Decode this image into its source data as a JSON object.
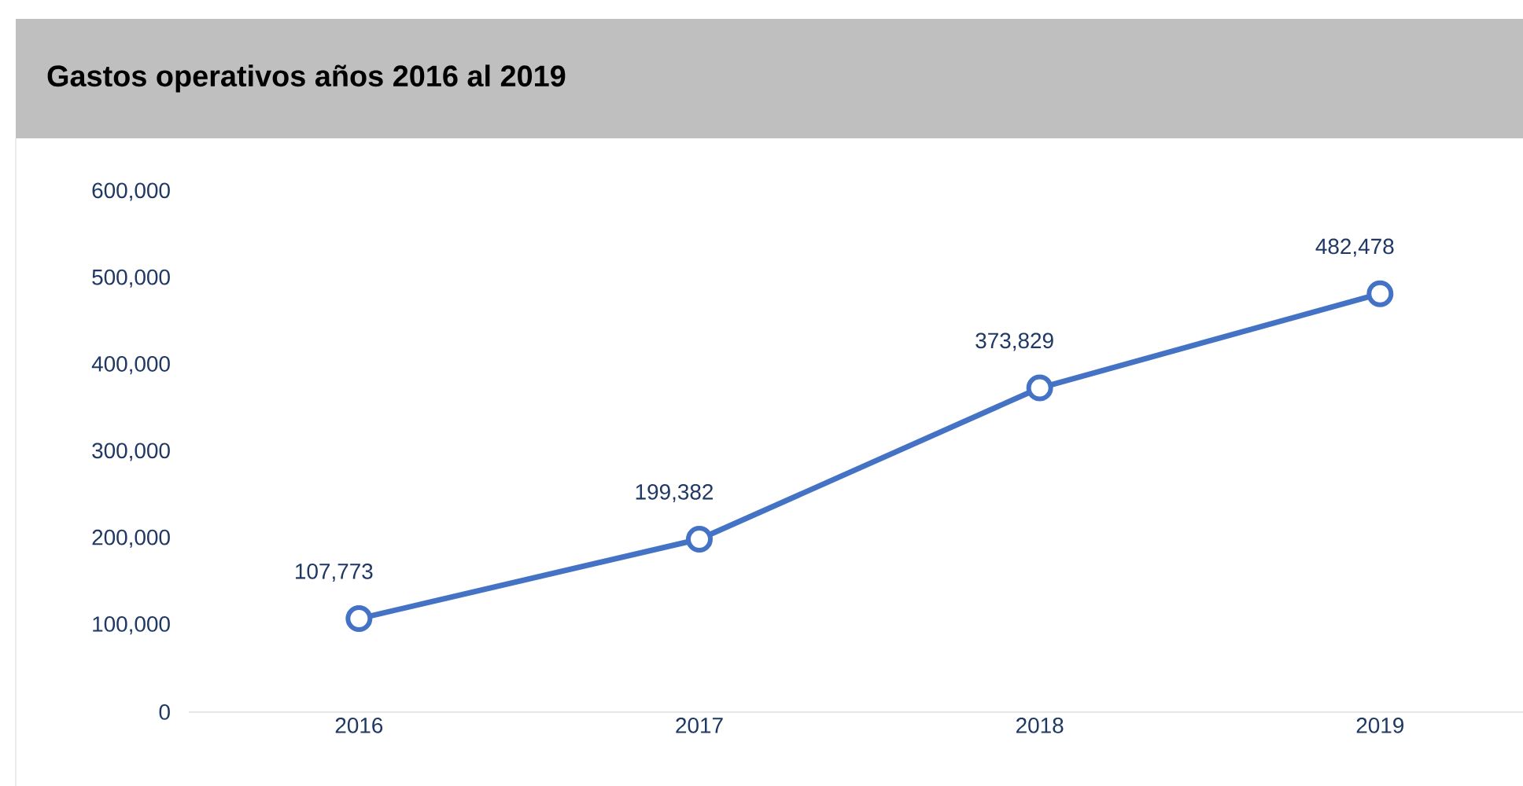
{
  "chart_data": {
    "type": "line",
    "title": "Gastos operativos años 2016 al 2019",
    "categories": [
      "2016",
      "2017",
      "2018",
      "2019"
    ],
    "values": [
      107773,
      199382,
      373829,
      482478
    ],
    "value_labels": [
      "107,773",
      "199,382",
      "373,829",
      "482,478"
    ],
    "color": "#4472c4",
    "marker": "circle",
    "ylim": [
      0,
      600000
    ],
    "yticks": [
      {
        "value": 0,
        "label": "0"
      },
      {
        "value": 100000,
        "label": "100,000"
      },
      {
        "value": 200000,
        "label": "200,000"
      },
      {
        "value": 300000,
        "label": "300,000"
      },
      {
        "value": 400000,
        "label": "400,000"
      },
      {
        "value": 500000,
        "label": "500,000"
      },
      {
        "value": 600000,
        "label": "600,000"
      }
    ]
  }
}
